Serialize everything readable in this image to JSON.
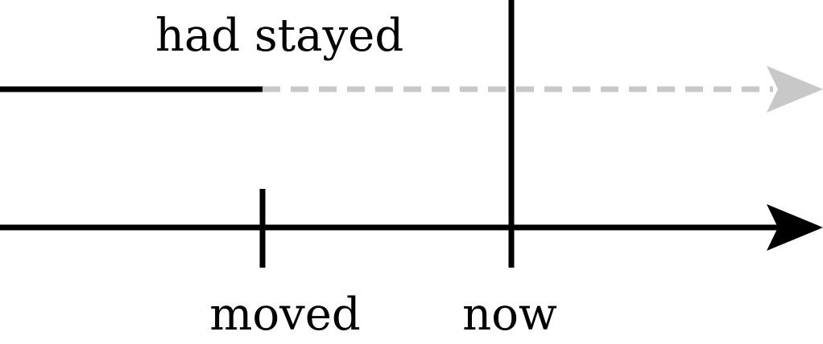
{
  "labels": {
    "had_stayed": "had stayed",
    "moved": "moved",
    "now": "now"
  },
  "colors": {
    "line": "#000000",
    "counterfactual": "#c8c8c8",
    "background": "#ffffff"
  }
}
